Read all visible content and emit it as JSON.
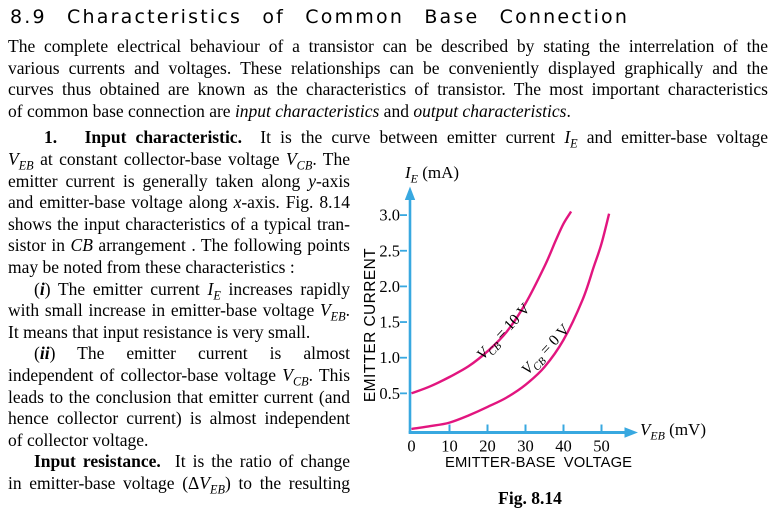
{
  "title": "8.9 Characteristics of Common Base Connection",
  "para1": {
    "l1": "The complete electrical behaviour of a transistor can be described by stating the interrelation of the",
    "l2": "various currents and voltages. These relationships can be conveniently displayed graphically and the",
    "l3": "curves thus obtained are known as the characteristics of transistor. The most important characteristics",
    "l4": "of common base connection are <i>input characteristics</i> and <i>output characteristics</i>."
  },
  "lead_line": "<b>1.&#160;&#160; Input characteristic.</b>&#160; It is the curve between emitter current <i>I</i><sub><i>E</i></sub> and emitter-base voltage",
  "left_lines": {
    "l1": "<i>V</i><sub><i>EB</i></sub> at constant collector-base voltage <i>V</i><sub><i>CB</i></sub>. The",
    "l2": "emitter current is generally taken along <i>y</i>-axis",
    "l3": "and emitter-base voltage along <i>x</i>-axis. Fig. 8.14",
    "l4": "shows the input characteristics of a typical tran-",
    "l5": "sistor in <i>CB</i> arrangement . The following points",
    "l6": "may be noted from these characteristics :",
    "l7": "(<b><i>i</i></b>) The emitter current <i>I</i><sub><i>E</i></sub> increases rapidly",
    "l8": "with small increase in emitter-base voltage <i>V</i><sub><i>EB</i></sub>.",
    "l9": "It means that input resistance is very small.",
    "l10": "(<b><i>ii</i></b>) The emitter current is almost",
    "l11": "independent of collector-base voltage <i>V</i><sub><i>CB</i></sub>. This",
    "l12": "leads to the conclusion that emitter current (and",
    "l13": "hence collector current) is almost independent",
    "l14": "of collector voltage.",
    "l15": "<b>Input resistance.</b>&#160; It is the ratio of change",
    "l16": "in emitter-base voltage (&#916;<i>V</i><sub><i>EB</i></sub>) to the resulting"
  },
  "chart_data": {
    "type": "line",
    "caption": "Fig. 8.14",
    "x_axis_label_html": "<i>V</i><sub><i>EB</i></sub> (mV)",
    "y_axis_label_html": "<i>I</i><sub><i>E</i></sub> (mA)",
    "x_axis_name": "EMITTER-BASE  VOLTAGE",
    "y_axis_name": "EMITTER CURRENT",
    "xlim": [
      0,
      58
    ],
    "ylim": [
      0,
      3.35
    ],
    "x_ticks": [
      0,
      10,
      20,
      30,
      40,
      50
    ],
    "y_ticks": [
      0.5,
      1.0,
      1.5,
      2.0,
      2.5,
      3.0
    ],
    "axis_color": "#38a8e0",
    "curve_color": "#e2157f",
    "series": [
      {
        "name": "VCB = 10 V",
        "label_html": "<i>V</i><sub><i>CB</i></sub> = 10 V",
        "points": [
          [
            0,
            0.5
          ],
          [
            5,
            0.6
          ],
          [
            10,
            0.73
          ],
          [
            15,
            0.88
          ],
          [
            20,
            1.09
          ],
          [
            25,
            1.36
          ],
          [
            30,
            1.76
          ],
          [
            35,
            2.28
          ],
          [
            38,
            2.65
          ],
          [
            40,
            2.88
          ],
          [
            42,
            3.05
          ]
        ]
      },
      {
        "name": "VCB = 0 V",
        "label_html": "<i>V</i><sub><i>CB</i></sub> = 0 V",
        "points": [
          [
            0,
            0.0
          ],
          [
            5,
            0.04
          ],
          [
            10,
            0.09
          ],
          [
            15,
            0.19
          ],
          [
            20,
            0.31
          ],
          [
            25,
            0.44
          ],
          [
            30,
            0.62
          ],
          [
            35,
            0.87
          ],
          [
            40,
            1.25
          ],
          [
            45,
            1.81
          ],
          [
            48,
            2.28
          ],
          [
            50,
            2.6
          ],
          [
            52,
            3.02
          ]
        ]
      }
    ]
  }
}
